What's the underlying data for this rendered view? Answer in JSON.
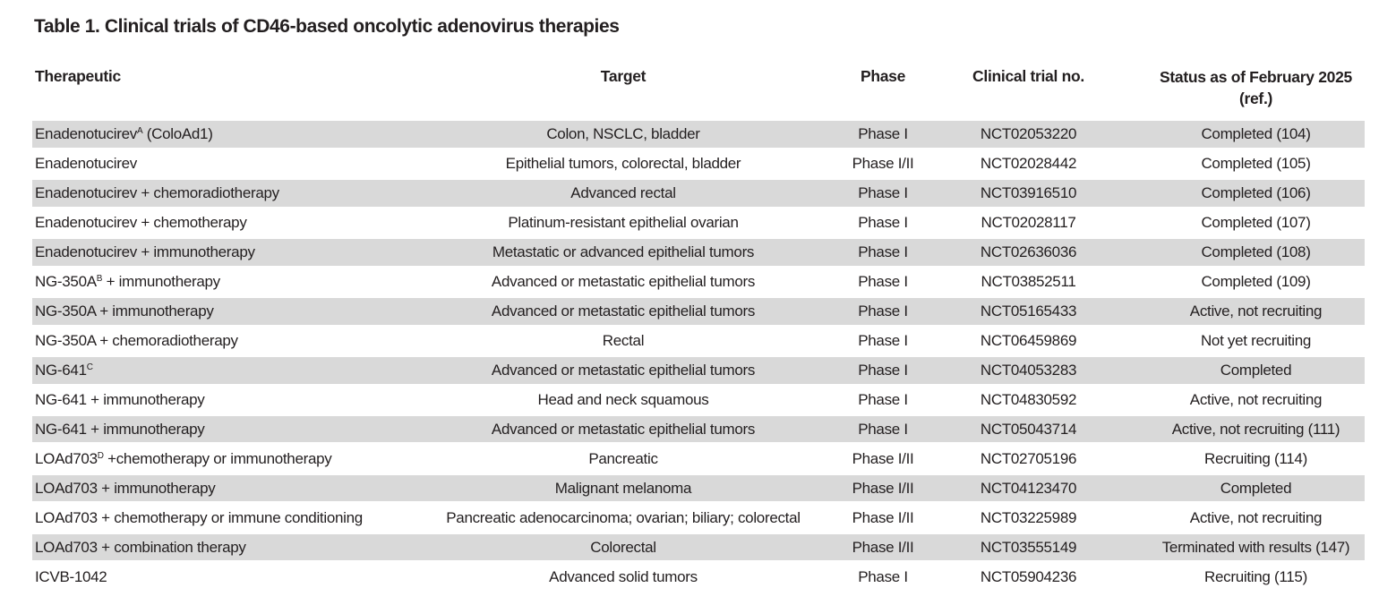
{
  "title": "Table 1. Clinical trials of CD46-based oncolytic adenovirus therapies",
  "colors": {
    "row_shade": "#d9d9d9",
    "text": "#231f20",
    "background": "#ffffff"
  },
  "table": {
    "header": {
      "therapeutic": "Therapeutic",
      "target": "Target",
      "phase": "Phase",
      "trial_no": "Clinical trial no.",
      "status_line1": "Status as of February 2025",
      "status_line2": "(ref.)"
    },
    "rows": [
      {
        "therapeutic_pre": "Enadenotucirev",
        "therapeutic_sup": "A",
        "therapeutic_post": " (ColoAd1)",
        "target": "Colon, NSCLC, bladder",
        "phase": "Phase I",
        "trial_no": "NCT02053220",
        "status": "Completed (104)",
        "shaded": true
      },
      {
        "therapeutic_pre": "Enadenotucirev",
        "therapeutic_sup": "",
        "therapeutic_post": "",
        "target": "Epithelial tumors, colorectal, bladder",
        "phase": "Phase I/II",
        "trial_no": "NCT02028442",
        "status": "Completed (105)",
        "shaded": false
      },
      {
        "therapeutic_pre": "Enadenotucirev + chemoradiotherapy",
        "therapeutic_sup": "",
        "therapeutic_post": "",
        "target": "Advanced rectal",
        "phase": "Phase I",
        "trial_no": "NCT03916510",
        "status": "Completed (106)",
        "shaded": true
      },
      {
        "therapeutic_pre": "Enadenotucirev + chemotherapy",
        "therapeutic_sup": "",
        "therapeutic_post": "",
        "target": "Platinum-resistant epithelial ovarian",
        "phase": "Phase I",
        "trial_no": "NCT02028117",
        "status": "Completed (107)",
        "shaded": false
      },
      {
        "therapeutic_pre": "Enadenotucirev + immunotherapy",
        "therapeutic_sup": "",
        "therapeutic_post": "",
        "target": "Metastatic or advanced epithelial tumors",
        "phase": "Phase I",
        "trial_no": "NCT02636036",
        "status": "Completed (108)",
        "shaded": true
      },
      {
        "therapeutic_pre": "NG-350A",
        "therapeutic_sup": "B",
        "therapeutic_post": " + immunotherapy",
        "target": "Advanced or metastatic epithelial tumors",
        "phase": "Phase I",
        "trial_no": "NCT03852511",
        "status": "Completed (109)",
        "shaded": false
      },
      {
        "therapeutic_pre": "NG-350A + immunotherapy",
        "therapeutic_sup": "",
        "therapeutic_post": "",
        "target": "Advanced or metastatic epithelial tumors",
        "phase": "Phase I",
        "trial_no": "NCT05165433",
        "status": "Active, not recruiting",
        "shaded": true
      },
      {
        "therapeutic_pre": "NG-350A + chemoradiotherapy",
        "therapeutic_sup": "",
        "therapeutic_post": "",
        "target": "Rectal",
        "phase": "Phase I",
        "trial_no": "NCT06459869",
        "status": "Not yet recruiting",
        "shaded": false
      },
      {
        "therapeutic_pre": "NG-641",
        "therapeutic_sup": "C",
        "therapeutic_post": "",
        "target": "Advanced or metastatic epithelial tumors",
        "phase": "Phase I",
        "trial_no": "NCT04053283",
        "status": "Completed",
        "shaded": true
      },
      {
        "therapeutic_pre": "NG-641 + immunotherapy",
        "therapeutic_sup": "",
        "therapeutic_post": "",
        "target": "Head and neck squamous",
        "phase": "Phase I",
        "trial_no": "NCT04830592",
        "status": "Active, not recruiting",
        "shaded": false
      },
      {
        "therapeutic_pre": "NG-641 + immunotherapy",
        "therapeutic_sup": "",
        "therapeutic_post": "",
        "target": "Advanced or metastatic epithelial tumors",
        "phase": "Phase I",
        "trial_no": "NCT05043714",
        "status": "Active, not recruiting (111)",
        "shaded": true
      },
      {
        "therapeutic_pre": "LOAd703",
        "therapeutic_sup": "D",
        "therapeutic_post": " +chemotherapy or immunotherapy",
        "target": "Pancreatic",
        "phase": "Phase I/II",
        "trial_no": "NCT02705196",
        "status": "Recruiting (114)",
        "shaded": false
      },
      {
        "therapeutic_pre": "LOAd703 + immunotherapy",
        "therapeutic_sup": "",
        "therapeutic_post": "",
        "target": "Malignant melanoma",
        "phase": "Phase I/II",
        "trial_no": "NCT04123470",
        "status": "Completed",
        "shaded": true
      },
      {
        "therapeutic_pre": "LOAd703 + chemotherapy or immune conditioning",
        "therapeutic_sup": "",
        "therapeutic_post": "",
        "target": "Pancreatic adenocarcinoma; ovarian; biliary; colorectal",
        "phase": "Phase I/II",
        "trial_no": "NCT03225989",
        "status": "Active, not recruiting",
        "shaded": false
      },
      {
        "therapeutic_pre": "LOAd703 + combination therapy",
        "therapeutic_sup": "",
        "therapeutic_post": "",
        "target": "Colorectal",
        "phase": "Phase I/II",
        "trial_no": "NCT03555149",
        "status": "Terminated with results (147)",
        "shaded": true
      },
      {
        "therapeutic_pre": "ICVB-1042",
        "therapeutic_sup": "",
        "therapeutic_post": "",
        "target": "Advanced solid tumors",
        "phase": "Phase I",
        "trial_no": "NCT05904236",
        "status": "Recruiting (115)",
        "shaded": false
      }
    ]
  }
}
